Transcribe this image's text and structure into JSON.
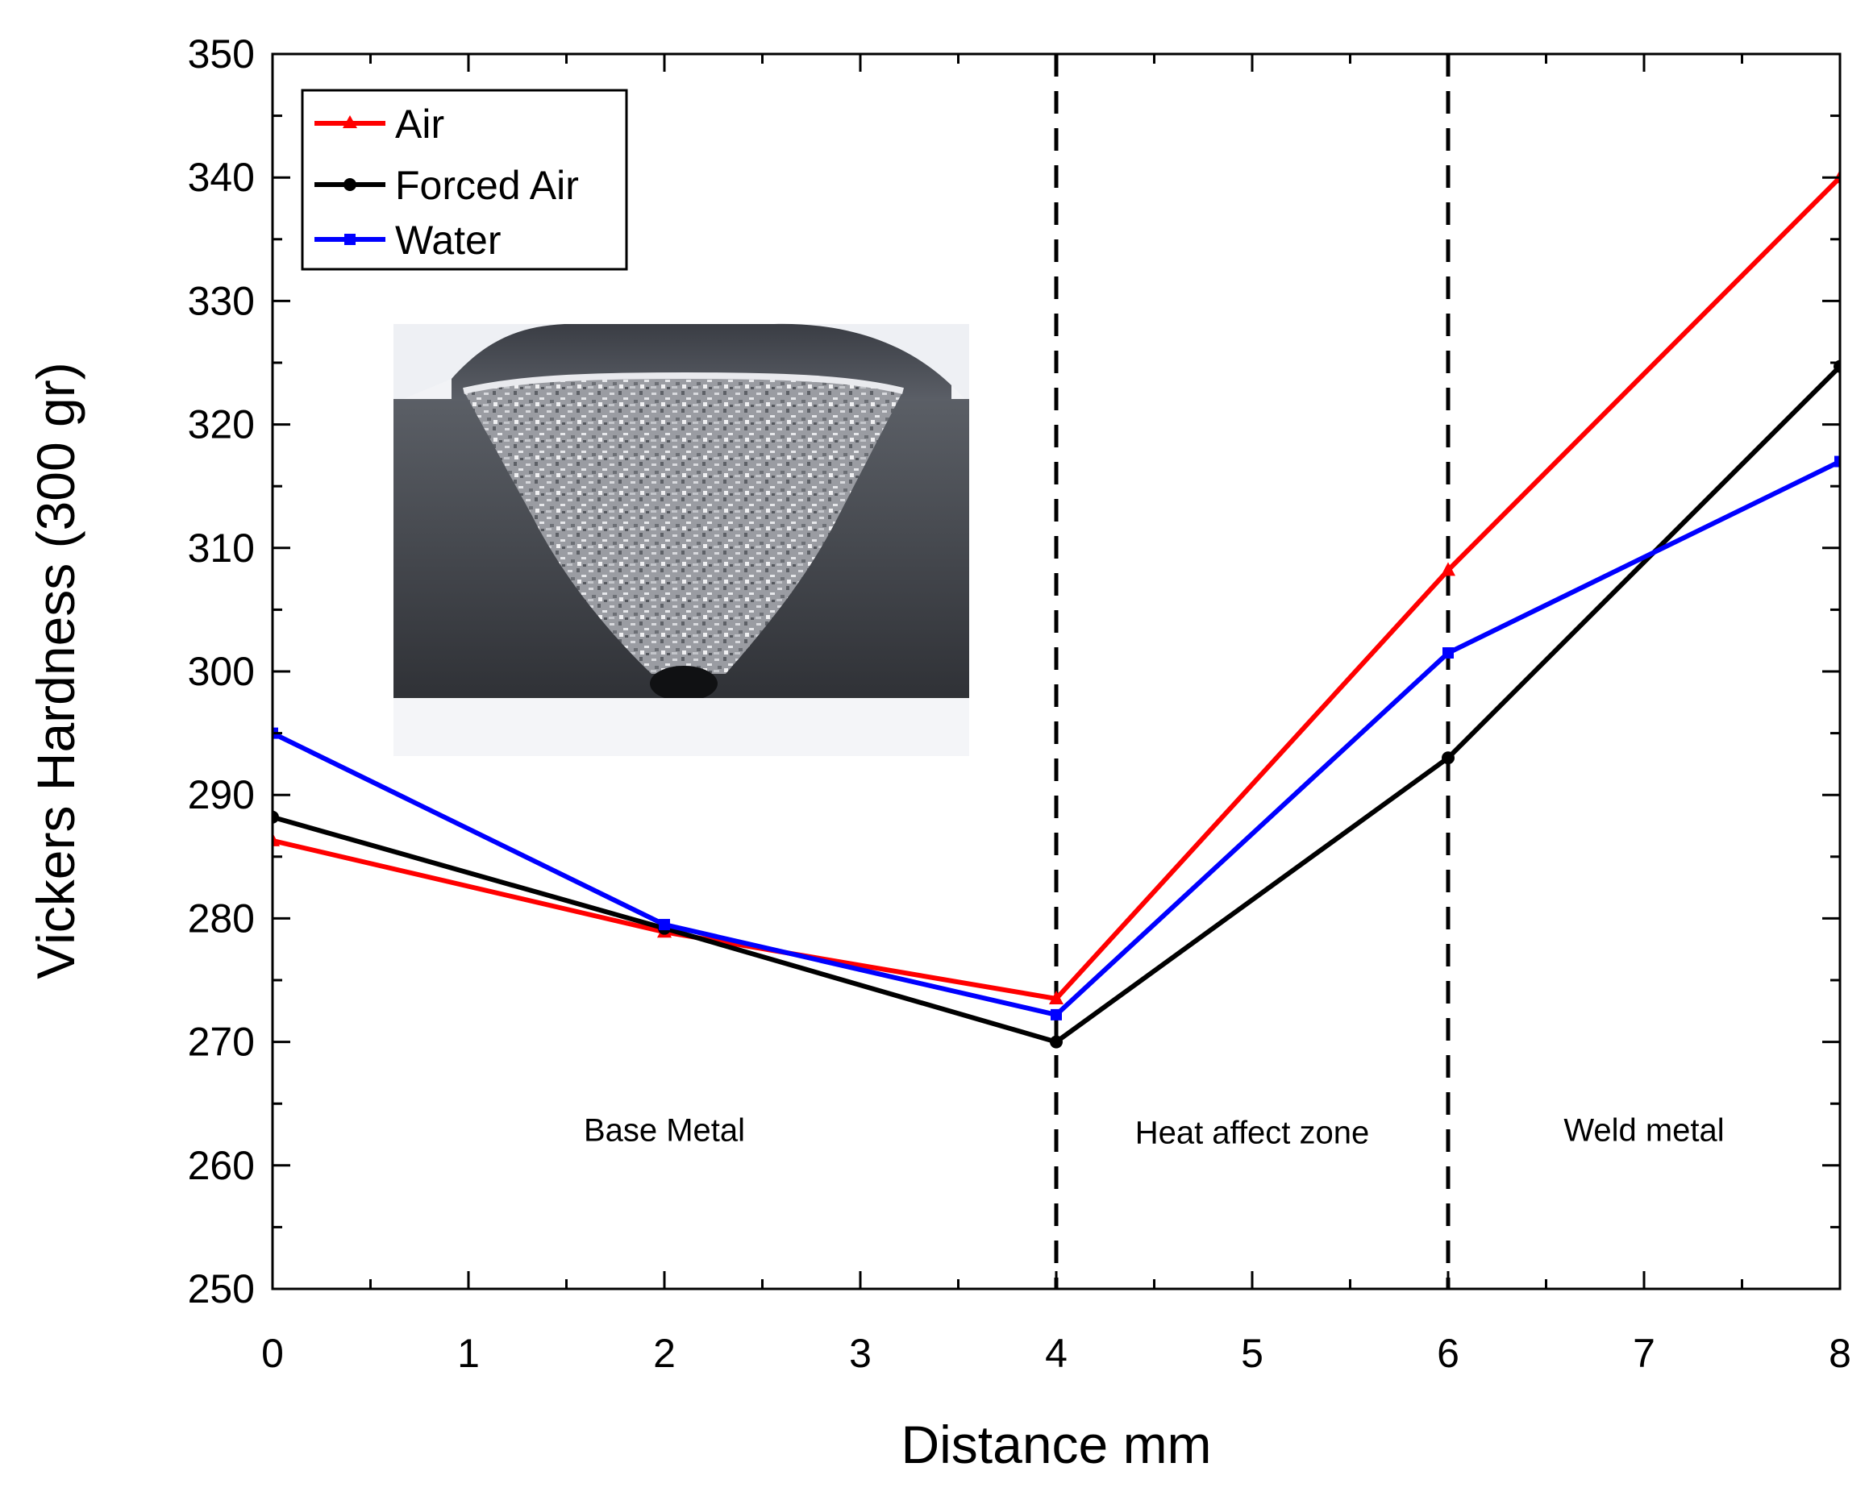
{
  "chart_data": {
    "type": "line",
    "title": "",
    "xlabel": "Distance mm",
    "ylabel": "Vickers Hardness (300 gr)",
    "xlim": [
      0,
      8
    ],
    "ylim": [
      250,
      350
    ],
    "xticks": [
      "0",
      "1",
      "2",
      "3",
      "4",
      "5",
      "6",
      "7",
      "8"
    ],
    "yticks": [
      "250",
      "260",
      "270",
      "280",
      "290",
      "300",
      "310",
      "320",
      "330",
      "340",
      "350"
    ],
    "x": [
      0,
      2,
      4,
      6,
      8
    ],
    "series": [
      {
        "name": "Air",
        "color": "#ff0000",
        "marker": "triangle",
        "values": [
          286.3,
          278.9,
          273.5,
          308.2,
          340.0
        ]
      },
      {
        "name": "Forced Air",
        "color": "#000000",
        "marker": "circle",
        "values": [
          288.2,
          279.2,
          270.0,
          293.0,
          324.7
        ]
      },
      {
        "name": "Water",
        "color": "#0000ff",
        "marker": "square",
        "values": [
          295.0,
          279.5,
          272.2,
          301.5,
          317.0
        ]
      }
    ],
    "vlines": [
      4,
      6
    ],
    "legend_position": "top-left",
    "zones": [
      {
        "label": "Base Metal",
        "x": 2.0,
        "y": 262.9
      },
      {
        "label": "Heat affect zone",
        "x": 5.0,
        "y": 262.7
      },
      {
        "label": "Weld metal",
        "x": 7.0,
        "y": 262.9
      }
    ],
    "inset": {
      "description_icon": "weld-cross-section-photo-icon"
    }
  }
}
